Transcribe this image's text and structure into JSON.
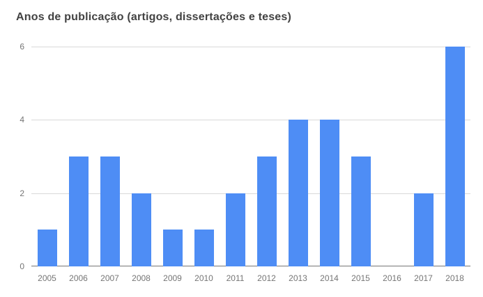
{
  "chart": {
    "title": "Anos de publicação (artigos, dissertações e teses)"
  },
  "chart_data": {
    "type": "bar",
    "title": "Anos de publicação (artigos, dissertações e teses)",
    "categories": [
      "2005",
      "2006",
      "2007",
      "2008",
      "2009",
      "2010",
      "2011",
      "2012",
      "2013",
      "2014",
      "2015",
      "2016",
      "2017",
      "2018"
    ],
    "values": [
      1,
      3,
      3,
      2,
      1,
      1,
      2,
      3,
      4,
      4,
      3,
      0,
      2,
      6
    ],
    "xlabel": "",
    "ylabel": "",
    "ylim": [
      0,
      6
    ],
    "yticks": [
      0,
      2,
      4,
      6
    ],
    "grid": true,
    "legend": "none",
    "colors": {
      "bar": "#4e8df5",
      "gridline": "#d9d9d9",
      "axis_line": "#757575",
      "title_text": "#424242",
      "tick_text": "#757575"
    }
  }
}
